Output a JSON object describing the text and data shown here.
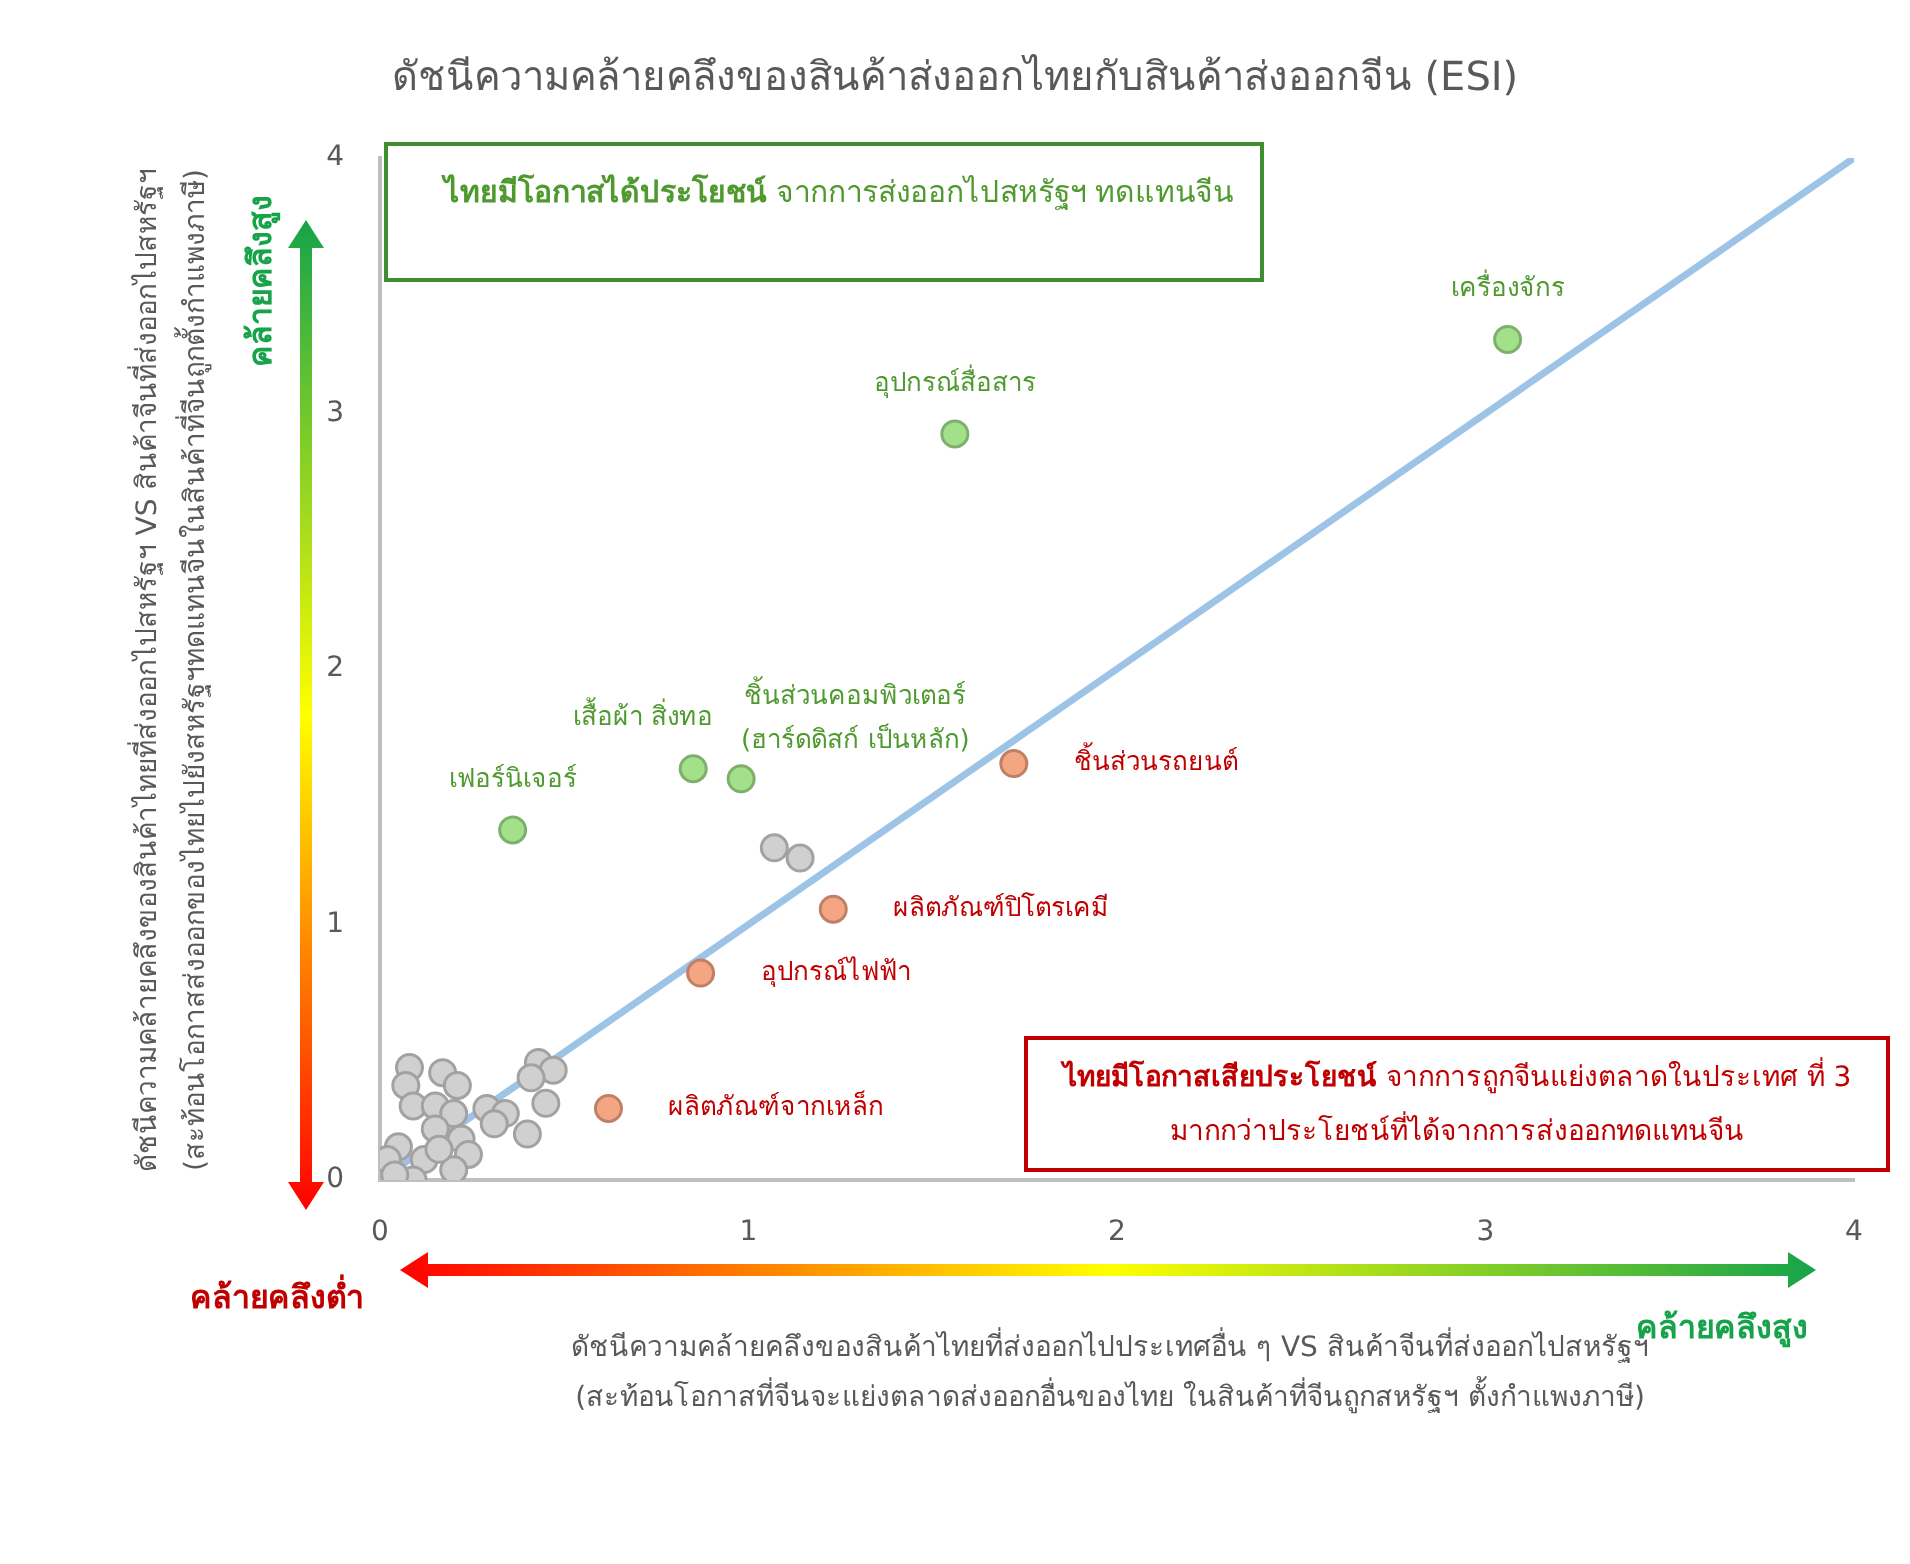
{
  "chart_data": {
    "type": "scatter",
    "title": "ดัชนีความคล้ายคลึงของสินค้าส่งออกไทยกับสินค้าส่งออกจีน (ESI)",
    "xlabel": "ดัชนีความคล้ายคลึงของสินค้าไทยที่ส่งออกไปประเทศอื่น  ๆ VS สินค้าจีนที่ส่งออกไปสหรัฐฯ\n(สะท้อนโอกาสที่จีนจะแย่งตลาดส่งออกอื่นของไทย  ในสินค้าที่จีนถูกสหรัฐฯ  ตั้งกำแพงภาษี)",
    "ylabel": "ดัชนีความคล้ายคลึงของสินค้าไทยที่ส่งออกไปสหรัฐฯ  VS สินค้าจีนที่ส่งออกไปสหรัฐฯ\n(สะท้อนโอกาสส่งออกของไทยไปยังสหรัฐฯทดแทนจีนในสินค้าที่จีนถูกตั้งกำแพงภาษี)",
    "xlim": [
      0,
      4
    ],
    "xticks": [
      0,
      1,
      2,
      3,
      4
    ],
    "ylim": [
      0,
      4
    ],
    "yticks": [
      0,
      1,
      2,
      3,
      4
    ],
    "grid": false,
    "legend": false,
    "marker": "circle",
    "series": [
      {
        "color": "#d0d0d0",
        "x": [
          1.07,
          1.14,
          0.08,
          0.07,
          0.17,
          0.21,
          0.43,
          0.47,
          0.41,
          0.45,
          0.4,
          0.09,
          0.15,
          0.2,
          0.29,
          0.34,
          0.31,
          0.15,
          0.22,
          0.24,
          0.2,
          0.12,
          0.05,
          0.02,
          0.09,
          0.16,
          0.04
        ],
        "values": [
          1.3,
          1.26,
          0.44,
          0.37,
          0.42,
          0.37,
          0.46,
          0.43,
          0.4,
          0.3,
          0.18,
          0.29,
          0.29,
          0.26,
          0.28,
          0.26,
          0.22,
          0.2,
          0.16,
          0.1,
          0.04,
          0.08,
          0.13,
          0.08,
          0.0,
          0.12,
          0.02
        ]
      },
      {
        "color": "#a3e08a",
        "x": [
          3.06,
          1.56,
          0.98,
          0.85,
          0.36
        ],
        "values": [
          3.29,
          2.92,
          1.57,
          1.61,
          1.37
        ]
      },
      {
        "color": "#f4a582",
        "x": [
          1.72,
          1.23,
          0.87,
          0.62
        ],
        "values": [
          1.63,
          1.06,
          0.81,
          0.28
        ]
      },
      {
        "type": "line",
        "marker": "none",
        "color": "#9dc3e6",
        "x": [
          0,
          4
        ],
        "values": [
          0,
          4
        ]
      }
    ],
    "annotations": [
      "ไทยมีโอกาสได้ประโยชน์  จากการส่งออกไปสหรัฐฯ ทดแทนจีน",
      "ไทยมีโอกาสเสียประโยชน์ จากการถูกจีนแย่งตลาดในประเทศ ที่ 3 มากกว่าประโยชน์ที่ได้จากการส่งออกทดแทนจีน",
      "คล้ายคลึงสูง",
      "คล้ายคลึงต่ำ",
      "คล้ายคลึงสูง",
      {
        "text": "เครื่องจักร",
        "x": 3.06,
        "y": 3.29
      },
      {
        "text": "อุปกรณ์สื่อสาร",
        "x": 1.56,
        "y": 2.92
      },
      {
        "text": "ชิ้นส่วนคอมพิวเตอร์\n(ฮาร์ดดิสก์ เป็นหลัก)",
        "x": 0.98,
        "y": 1.57
      },
      {
        "text": "เสื้อผ้า สิ่งทอ",
        "x": 0.85,
        "y": 1.61
      },
      {
        "text": "เฟอร์นิเจอร์",
        "x": 0.36,
        "y": 1.37
      },
      {
        "text": "ชิ้นส่วนรถยนต์",
        "x": 1.72,
        "y": 1.63
      },
      {
        "text": "ผลิตภัณฑ์ปิโตรเคมี",
        "x": 1.23,
        "y": 1.06
      },
      {
        "text": "อุปกรณ์ไฟฟ้า",
        "x": 0.87,
        "y": 0.81
      },
      {
        "text": "ผลิตภัณฑ์จากเหล็ก",
        "x": 0.62,
        "y": 0.28
      }
    ]
  }
}
